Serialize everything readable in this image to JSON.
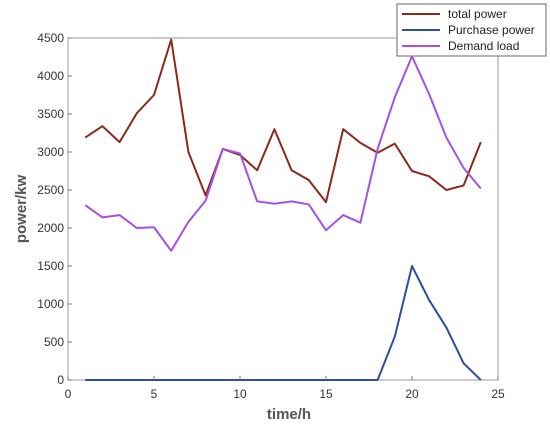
{
  "chart_data": {
    "type": "line",
    "title": "",
    "xlabel": "time/h",
    "ylabel": "power/kw",
    "xlim": [
      0,
      25
    ],
    "ylim": [
      0,
      4500
    ],
    "xticks": [
      0,
      5,
      10,
      15,
      20,
      25
    ],
    "yticks": [
      0,
      500,
      1000,
      1500,
      2000,
      2500,
      3000,
      3500,
      4000,
      4500
    ],
    "grid": false,
    "legend_position": "top-right",
    "x": [
      1,
      2,
      3,
      4,
      5,
      6,
      7,
      8,
      9,
      10,
      11,
      12,
      13,
      14,
      15,
      16,
      17,
      18,
      19,
      20,
      21,
      22,
      23,
      24
    ],
    "series": [
      {
        "name": "total power",
        "color": "#8b2a1a",
        "values": [
          3190,
          3340,
          3130,
          3510,
          3750,
          4480,
          3000,
          2430,
          3040,
          2960,
          2760,
          3300,
          2760,
          2630,
          2340,
          3300,
          3120,
          2990,
          3110,
          2750,
          2680,
          2500,
          2560,
          3130
        ]
      },
      {
        "name": "Purchase power",
        "color": "#2e4f9e",
        "values": [
          0,
          0,
          0,
          0,
          0,
          0,
          0,
          0,
          0,
          0,
          0,
          0,
          0,
          0,
          0,
          0,
          0,
          0,
          570,
          1500,
          1050,
          690,
          220,
          0
        ]
      },
      {
        "name": "Demand load",
        "color": "#a94fe0",
        "values": [
          2300,
          2140,
          2170,
          2000,
          2010,
          1700,
          2080,
          2360,
          3040,
          2980,
          2350,
          2320,
          2350,
          2310,
          1970,
          2170,
          2070,
          3040,
          3720,
          4260,
          3760,
          3190,
          2790,
          2520
        ]
      }
    ]
  }
}
